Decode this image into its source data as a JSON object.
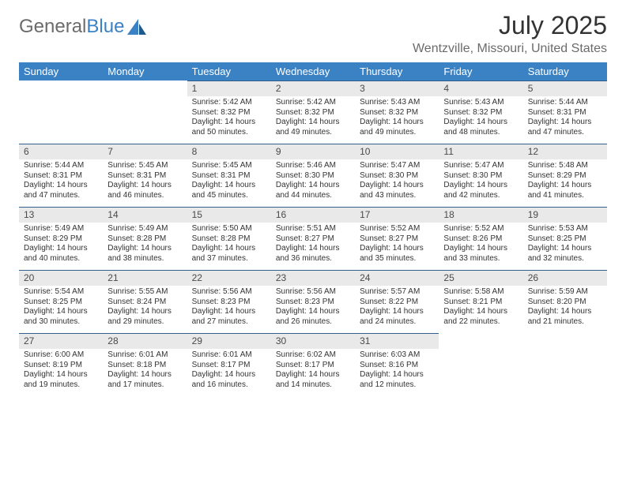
{
  "brand": {
    "part1": "General",
    "part2": "Blue"
  },
  "title": "July 2025",
  "location": "Wentzville, Missouri, United States",
  "header_bg": "#3b82c4",
  "header_fg": "#ffffff",
  "daynum_bg": "#e9e9e9",
  "daynum_border": "#2f5f8a",
  "text_color": "#333333",
  "fontsize_title": 32,
  "fontsize_location": 16,
  "fontsize_header": 13,
  "fontsize_daynum": 12,
  "fontsize_body": 10,
  "day_headers": [
    "Sunday",
    "Monday",
    "Tuesday",
    "Wednesday",
    "Thursday",
    "Friday",
    "Saturday"
  ],
  "weeks": [
    [
      null,
      null,
      {
        "n": "1",
        "sr": "Sunrise: 5:42 AM",
        "ss": "Sunset: 8:32 PM",
        "dl1": "Daylight: 14 hours",
        "dl2": "and 50 minutes."
      },
      {
        "n": "2",
        "sr": "Sunrise: 5:42 AM",
        "ss": "Sunset: 8:32 PM",
        "dl1": "Daylight: 14 hours",
        "dl2": "and 49 minutes."
      },
      {
        "n": "3",
        "sr": "Sunrise: 5:43 AM",
        "ss": "Sunset: 8:32 PM",
        "dl1": "Daylight: 14 hours",
        "dl2": "and 49 minutes."
      },
      {
        "n": "4",
        "sr": "Sunrise: 5:43 AM",
        "ss": "Sunset: 8:32 PM",
        "dl1": "Daylight: 14 hours",
        "dl2": "and 48 minutes."
      },
      {
        "n": "5",
        "sr": "Sunrise: 5:44 AM",
        "ss": "Sunset: 8:31 PM",
        "dl1": "Daylight: 14 hours",
        "dl2": "and 47 minutes."
      }
    ],
    [
      {
        "n": "6",
        "sr": "Sunrise: 5:44 AM",
        "ss": "Sunset: 8:31 PM",
        "dl1": "Daylight: 14 hours",
        "dl2": "and 47 minutes."
      },
      {
        "n": "7",
        "sr": "Sunrise: 5:45 AM",
        "ss": "Sunset: 8:31 PM",
        "dl1": "Daylight: 14 hours",
        "dl2": "and 46 minutes."
      },
      {
        "n": "8",
        "sr": "Sunrise: 5:45 AM",
        "ss": "Sunset: 8:31 PM",
        "dl1": "Daylight: 14 hours",
        "dl2": "and 45 minutes."
      },
      {
        "n": "9",
        "sr": "Sunrise: 5:46 AM",
        "ss": "Sunset: 8:30 PM",
        "dl1": "Daylight: 14 hours",
        "dl2": "and 44 minutes."
      },
      {
        "n": "10",
        "sr": "Sunrise: 5:47 AM",
        "ss": "Sunset: 8:30 PM",
        "dl1": "Daylight: 14 hours",
        "dl2": "and 43 minutes."
      },
      {
        "n": "11",
        "sr": "Sunrise: 5:47 AM",
        "ss": "Sunset: 8:30 PM",
        "dl1": "Daylight: 14 hours",
        "dl2": "and 42 minutes."
      },
      {
        "n": "12",
        "sr": "Sunrise: 5:48 AM",
        "ss": "Sunset: 8:29 PM",
        "dl1": "Daylight: 14 hours",
        "dl2": "and 41 minutes."
      }
    ],
    [
      {
        "n": "13",
        "sr": "Sunrise: 5:49 AM",
        "ss": "Sunset: 8:29 PM",
        "dl1": "Daylight: 14 hours",
        "dl2": "and 40 minutes."
      },
      {
        "n": "14",
        "sr": "Sunrise: 5:49 AM",
        "ss": "Sunset: 8:28 PM",
        "dl1": "Daylight: 14 hours",
        "dl2": "and 38 minutes."
      },
      {
        "n": "15",
        "sr": "Sunrise: 5:50 AM",
        "ss": "Sunset: 8:28 PM",
        "dl1": "Daylight: 14 hours",
        "dl2": "and 37 minutes."
      },
      {
        "n": "16",
        "sr": "Sunrise: 5:51 AM",
        "ss": "Sunset: 8:27 PM",
        "dl1": "Daylight: 14 hours",
        "dl2": "and 36 minutes."
      },
      {
        "n": "17",
        "sr": "Sunrise: 5:52 AM",
        "ss": "Sunset: 8:27 PM",
        "dl1": "Daylight: 14 hours",
        "dl2": "and 35 minutes."
      },
      {
        "n": "18",
        "sr": "Sunrise: 5:52 AM",
        "ss": "Sunset: 8:26 PM",
        "dl1": "Daylight: 14 hours",
        "dl2": "and 33 minutes."
      },
      {
        "n": "19",
        "sr": "Sunrise: 5:53 AM",
        "ss": "Sunset: 8:25 PM",
        "dl1": "Daylight: 14 hours",
        "dl2": "and 32 minutes."
      }
    ],
    [
      {
        "n": "20",
        "sr": "Sunrise: 5:54 AM",
        "ss": "Sunset: 8:25 PM",
        "dl1": "Daylight: 14 hours",
        "dl2": "and 30 minutes."
      },
      {
        "n": "21",
        "sr": "Sunrise: 5:55 AM",
        "ss": "Sunset: 8:24 PM",
        "dl1": "Daylight: 14 hours",
        "dl2": "and 29 minutes."
      },
      {
        "n": "22",
        "sr": "Sunrise: 5:56 AM",
        "ss": "Sunset: 8:23 PM",
        "dl1": "Daylight: 14 hours",
        "dl2": "and 27 minutes."
      },
      {
        "n": "23",
        "sr": "Sunrise: 5:56 AM",
        "ss": "Sunset: 8:23 PM",
        "dl1": "Daylight: 14 hours",
        "dl2": "and 26 minutes."
      },
      {
        "n": "24",
        "sr": "Sunrise: 5:57 AM",
        "ss": "Sunset: 8:22 PM",
        "dl1": "Daylight: 14 hours",
        "dl2": "and 24 minutes."
      },
      {
        "n": "25",
        "sr": "Sunrise: 5:58 AM",
        "ss": "Sunset: 8:21 PM",
        "dl1": "Daylight: 14 hours",
        "dl2": "and 22 minutes."
      },
      {
        "n": "26",
        "sr": "Sunrise: 5:59 AM",
        "ss": "Sunset: 8:20 PM",
        "dl1": "Daylight: 14 hours",
        "dl2": "and 21 minutes."
      }
    ],
    [
      {
        "n": "27",
        "sr": "Sunrise: 6:00 AM",
        "ss": "Sunset: 8:19 PM",
        "dl1": "Daylight: 14 hours",
        "dl2": "and 19 minutes."
      },
      {
        "n": "28",
        "sr": "Sunrise: 6:01 AM",
        "ss": "Sunset: 8:18 PM",
        "dl1": "Daylight: 14 hours",
        "dl2": "and 17 minutes."
      },
      {
        "n": "29",
        "sr": "Sunrise: 6:01 AM",
        "ss": "Sunset: 8:17 PM",
        "dl1": "Daylight: 14 hours",
        "dl2": "and 16 minutes."
      },
      {
        "n": "30",
        "sr": "Sunrise: 6:02 AM",
        "ss": "Sunset: 8:17 PM",
        "dl1": "Daylight: 14 hours",
        "dl2": "and 14 minutes."
      },
      {
        "n": "31",
        "sr": "Sunrise: 6:03 AM",
        "ss": "Sunset: 8:16 PM",
        "dl1": "Daylight: 14 hours",
        "dl2": "and 12 minutes."
      },
      null,
      null
    ]
  ]
}
